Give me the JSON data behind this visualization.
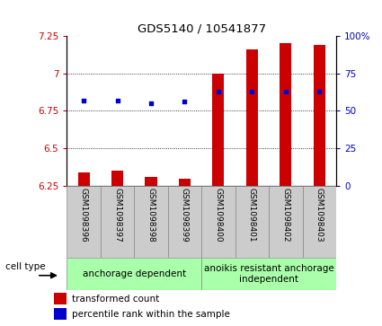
{
  "title": "GDS5140 / 10541877",
  "samples": [
    "GSM1098396",
    "GSM1098397",
    "GSM1098398",
    "GSM1098399",
    "GSM1098400",
    "GSM1098401",
    "GSM1098402",
    "GSM1098403"
  ],
  "bar_values": [
    6.34,
    6.35,
    6.31,
    6.3,
    7.0,
    7.16,
    7.2,
    7.19
  ],
  "bar_base": 6.25,
  "percentile_values": [
    57,
    57,
    55,
    56,
    63,
    63,
    63,
    63
  ],
  "ylim_left": [
    6.25,
    7.25
  ],
  "ylim_right": [
    0,
    100
  ],
  "yticks_left": [
    6.25,
    6.5,
    6.75,
    7.0,
    7.25
  ],
  "yticks_right": [
    0,
    25,
    50,
    75,
    100
  ],
  "ytick_labels_left": [
    "6.25",
    "6.5",
    "6.75",
    "7",
    "7.25"
  ],
  "ytick_labels_right": [
    "0",
    "25",
    "50",
    "75",
    "100%"
  ],
  "bar_color": "#cc0000",
  "dot_color": "#0000cc",
  "group1_label": "anchorage dependent",
  "group2_label": "anoikis resistant anchorage\nindependent",
  "group_color": "#aaffaa",
  "cell_type_label": "cell type",
  "legend_red_label": "transformed count",
  "legend_blue_label": "percentile rank within the sample",
  "grid_linestyle": "dotted",
  "tick_color_left": "#cc0000",
  "tick_color_right": "#0000cc",
  "sample_box_color": "#cccccc",
  "sample_box_edge": "#888888"
}
